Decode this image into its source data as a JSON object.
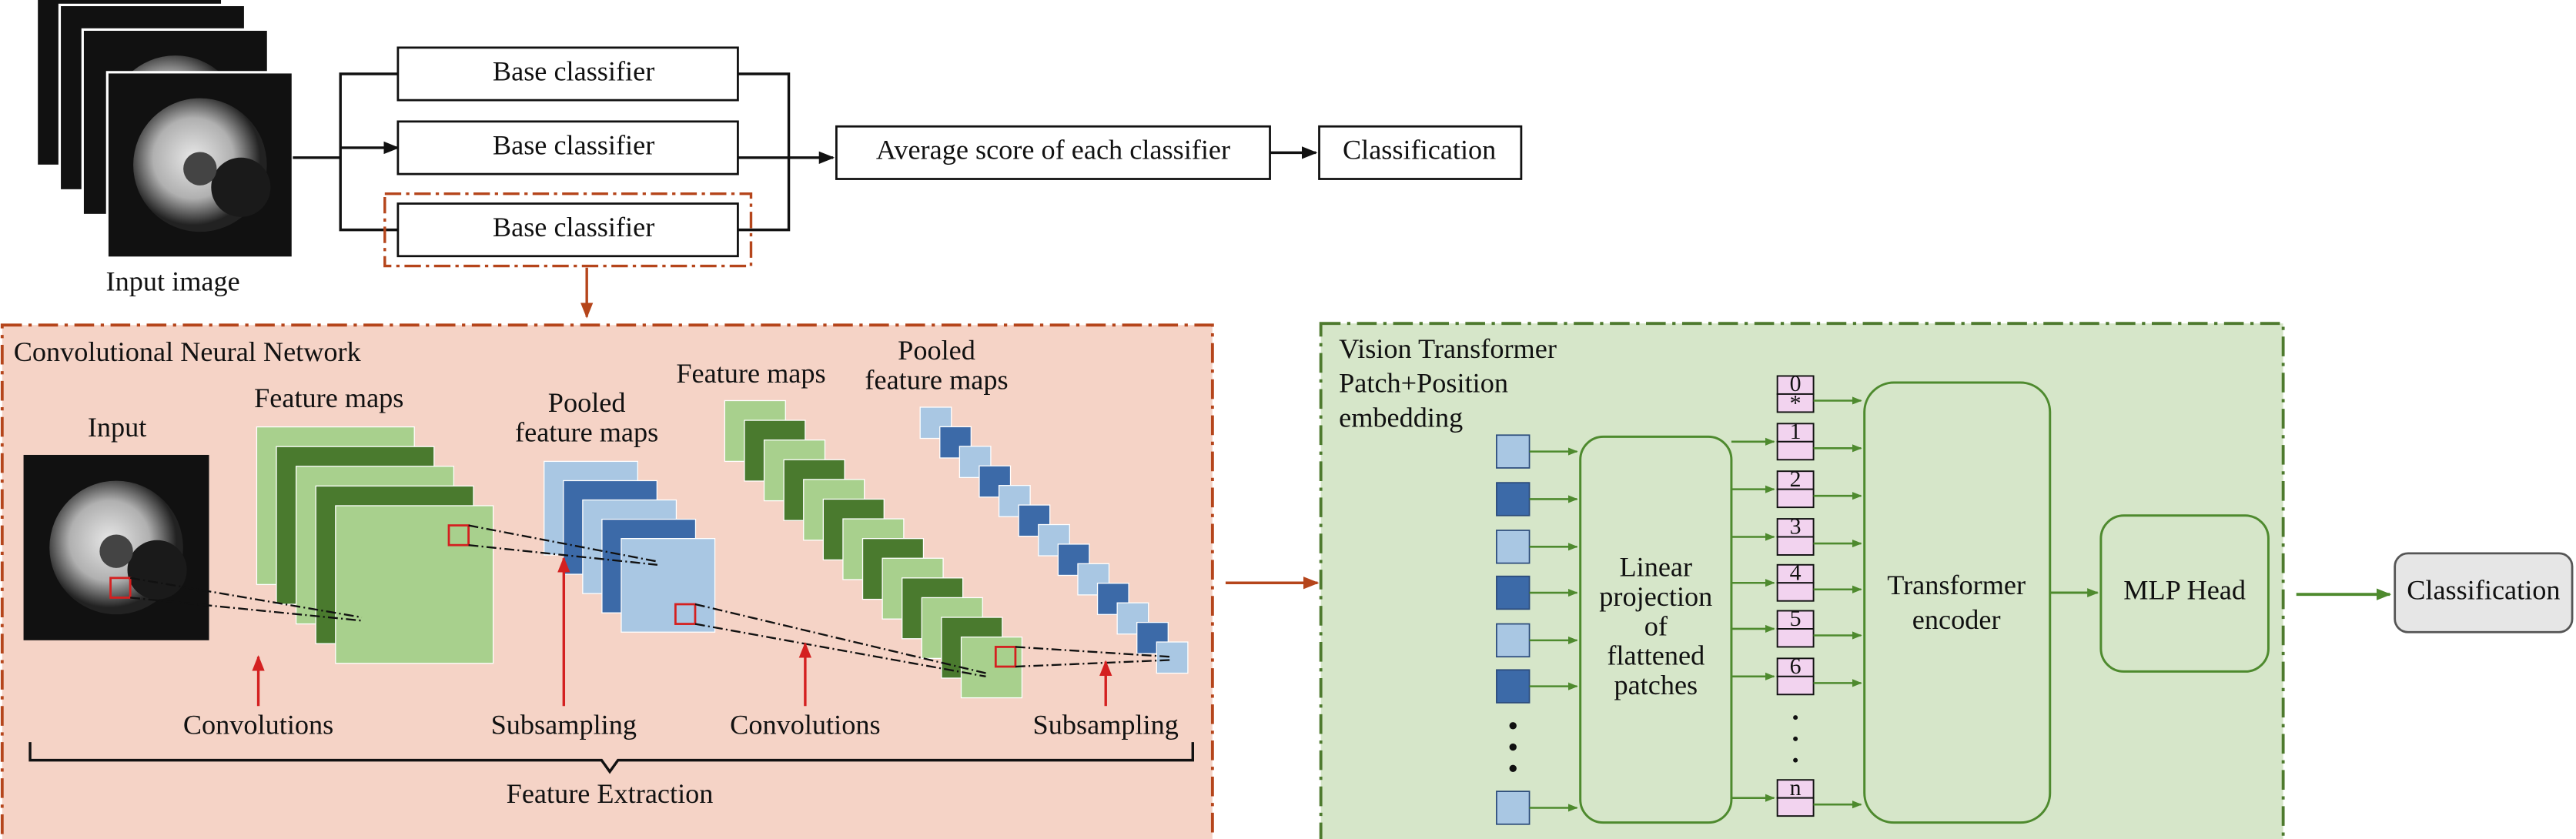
{
  "input_image": {
    "label": "Input image"
  },
  "ensemble": {
    "base_classifiers": [
      "Base classifier",
      "Base classifier",
      "Base classifier"
    ],
    "average": "Average score of each classifier",
    "classification": "Classification"
  },
  "cnn": {
    "title": "Convolutional Neural Network",
    "input_label": "Input",
    "feature_maps_1": "Feature maps",
    "pooled_maps_1": [
      "Pooled",
      "feature maps"
    ],
    "feature_maps_2": "Feature maps",
    "pooled_maps_2": [
      "Pooled",
      "feature maps"
    ],
    "steps": [
      "Convolutions",
      "Subsampling",
      "Convolutions",
      "Subsampling"
    ],
    "feature_extraction": "Feature Extraction"
  },
  "vit": {
    "title": [
      "Vision Transformer",
      "Patch+Position",
      "embedding"
    ],
    "projection": [
      "Linear",
      "projection",
      "of",
      "flattened",
      "patches"
    ],
    "tokens": [
      "0",
      "1",
      "2",
      "3",
      "4",
      "5",
      "6",
      "n"
    ],
    "class_marker": "*",
    "encoder": [
      "Transformer",
      "encoder"
    ],
    "mlp_head": "MLP Head",
    "classification": "Classification"
  }
}
